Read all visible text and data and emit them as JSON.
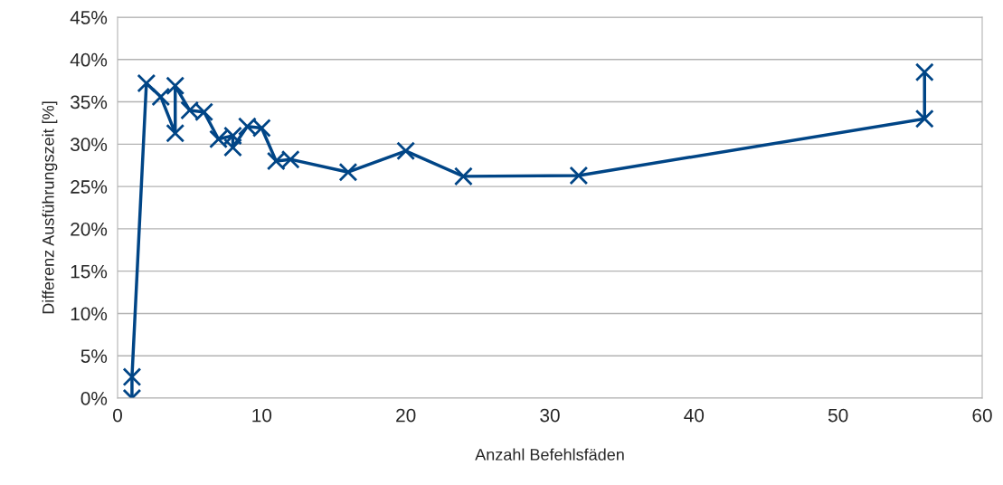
{
  "chart_data": {
    "type": "line",
    "xlabel": "Anzahl Befehlsfäden",
    "ylabel": "Differenz Ausführungszeit [%]",
    "series": [
      {
        "color": "#004586",
        "x": [
          1,
          1,
          2,
          3,
          4,
          4,
          5,
          6,
          7,
          8,
          8,
          9,
          10,
          11,
          12,
          16,
          20,
          24,
          32,
          56,
          56
        ],
        "values": [
          0,
          2.5,
          37.2,
          35.6,
          31.3,
          36.9,
          34.0,
          33.8,
          30.6,
          31.0,
          29.6,
          32.1,
          31.9,
          28.0,
          28.2,
          26.7,
          29.2,
          26.2,
          26.3,
          33.0,
          38.5
        ]
      }
    ],
    "xlim": [
      0,
      60
    ],
    "xticks": [
      0,
      10,
      20,
      30,
      40,
      50,
      60
    ],
    "ylim": [
      0,
      45
    ],
    "yticks": [
      {
        "value": 0,
        "label": "0%"
      },
      {
        "value": 5,
        "label": "5%"
      },
      {
        "value": 10,
        "label": "10%"
      },
      {
        "value": 15,
        "label": "15%"
      },
      {
        "value": 20,
        "label": "20%"
      },
      {
        "value": 25,
        "label": "25%"
      },
      {
        "value": 30,
        "label": "30%"
      },
      {
        "value": 35,
        "label": "35%"
      },
      {
        "value": 40,
        "label": "40%"
      },
      {
        "value": 45,
        "label": "45%"
      }
    ],
    "grid": "y",
    "marker": "cross",
    "line_style": "solid"
  }
}
